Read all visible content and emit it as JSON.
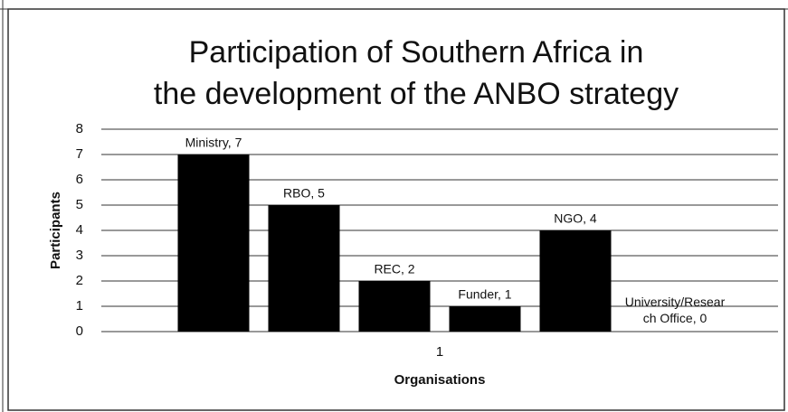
{
  "chart_data": {
    "type": "bar",
    "title": "Participation of Southern Africa in the development of the ANBO strategy",
    "x_label": "Organisations",
    "y_label": "Participants",
    "categories": [
      "1"
    ],
    "series": [
      {
        "name": "Ministry",
        "color": "#000000",
        "values": [
          7
        ],
        "value_labels": [
          "Ministry, 7"
        ]
      },
      {
        "name": "RBO",
        "color": "#000000",
        "values": [
          5
        ],
        "value_labels": [
          "RBO, 5"
        ]
      },
      {
        "name": "REC",
        "color": "#000000",
        "values": [
          2
        ],
        "value_labels": [
          "REC, 2"
        ]
      },
      {
        "name": "Funder",
        "color": "#000000",
        "values": [
          1
        ],
        "value_labels": [
          "Funder, 1"
        ]
      },
      {
        "name": "NGO",
        "color": "#000000",
        "values": [
          4
        ],
        "value_labels": [
          "NGO, 4"
        ]
      },
      {
        "name": "University/Research Office",
        "color": "#000000",
        "values": [
          0
        ],
        "value_labels": [
          "University/Research Office, 0"
        ]
      }
    ],
    "ylim": [
      0,
      8
    ],
    "yticks": [
      0,
      1,
      2,
      3,
      4,
      5,
      6,
      7,
      8
    ],
    "grid": true,
    "legend": false
  }
}
